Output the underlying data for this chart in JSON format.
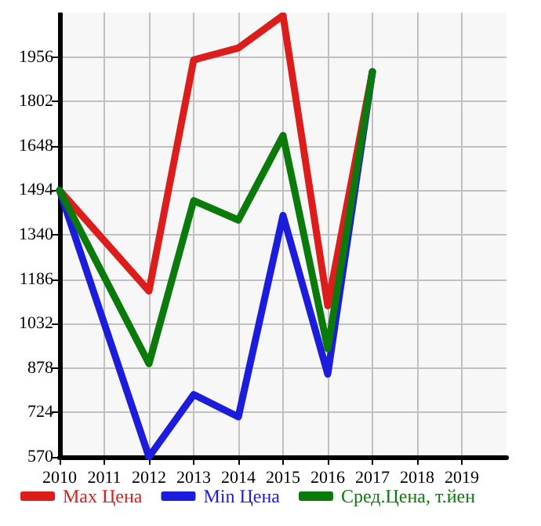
{
  "chart_data": {
    "type": "line",
    "x": [
      2010,
      2011,
      2012,
      2013,
      2014,
      2015,
      2016,
      2017
    ],
    "series": [
      {
        "name": "Max Цена",
        "color": "#dd1c1c",
        "values": [
          1494,
          null,
          1145,
          1946,
          1987,
          2100,
          1094,
          1905
        ]
      },
      {
        "name": "Min Цена",
        "color": "#1c1cdd",
        "values": [
          1494,
          null,
          570,
          786,
          709,
          1407,
          857,
          1905
        ]
      },
      {
        "name": "Сред.Цена, т.йен",
        "color": "#0a7a0a",
        "values": [
          1494,
          null,
          893,
          1458,
          1391,
          1684,
          945,
          1905
        ]
      }
    ],
    "xlim": [
      2010,
      2020
    ],
    "xticks": [
      2010,
      2011,
      2012,
      2013,
      2014,
      2015,
      2016,
      2017,
      2018,
      2019
    ],
    "ylim": [
      570,
      2110
    ],
    "yticks": [
      570,
      724,
      878,
      1032,
      1186,
      1340,
      1494,
      1648,
      1802,
      1956
    ],
    "grid": true,
    "legend": "bottom",
    "marker": "none",
    "line_style": "solid"
  }
}
